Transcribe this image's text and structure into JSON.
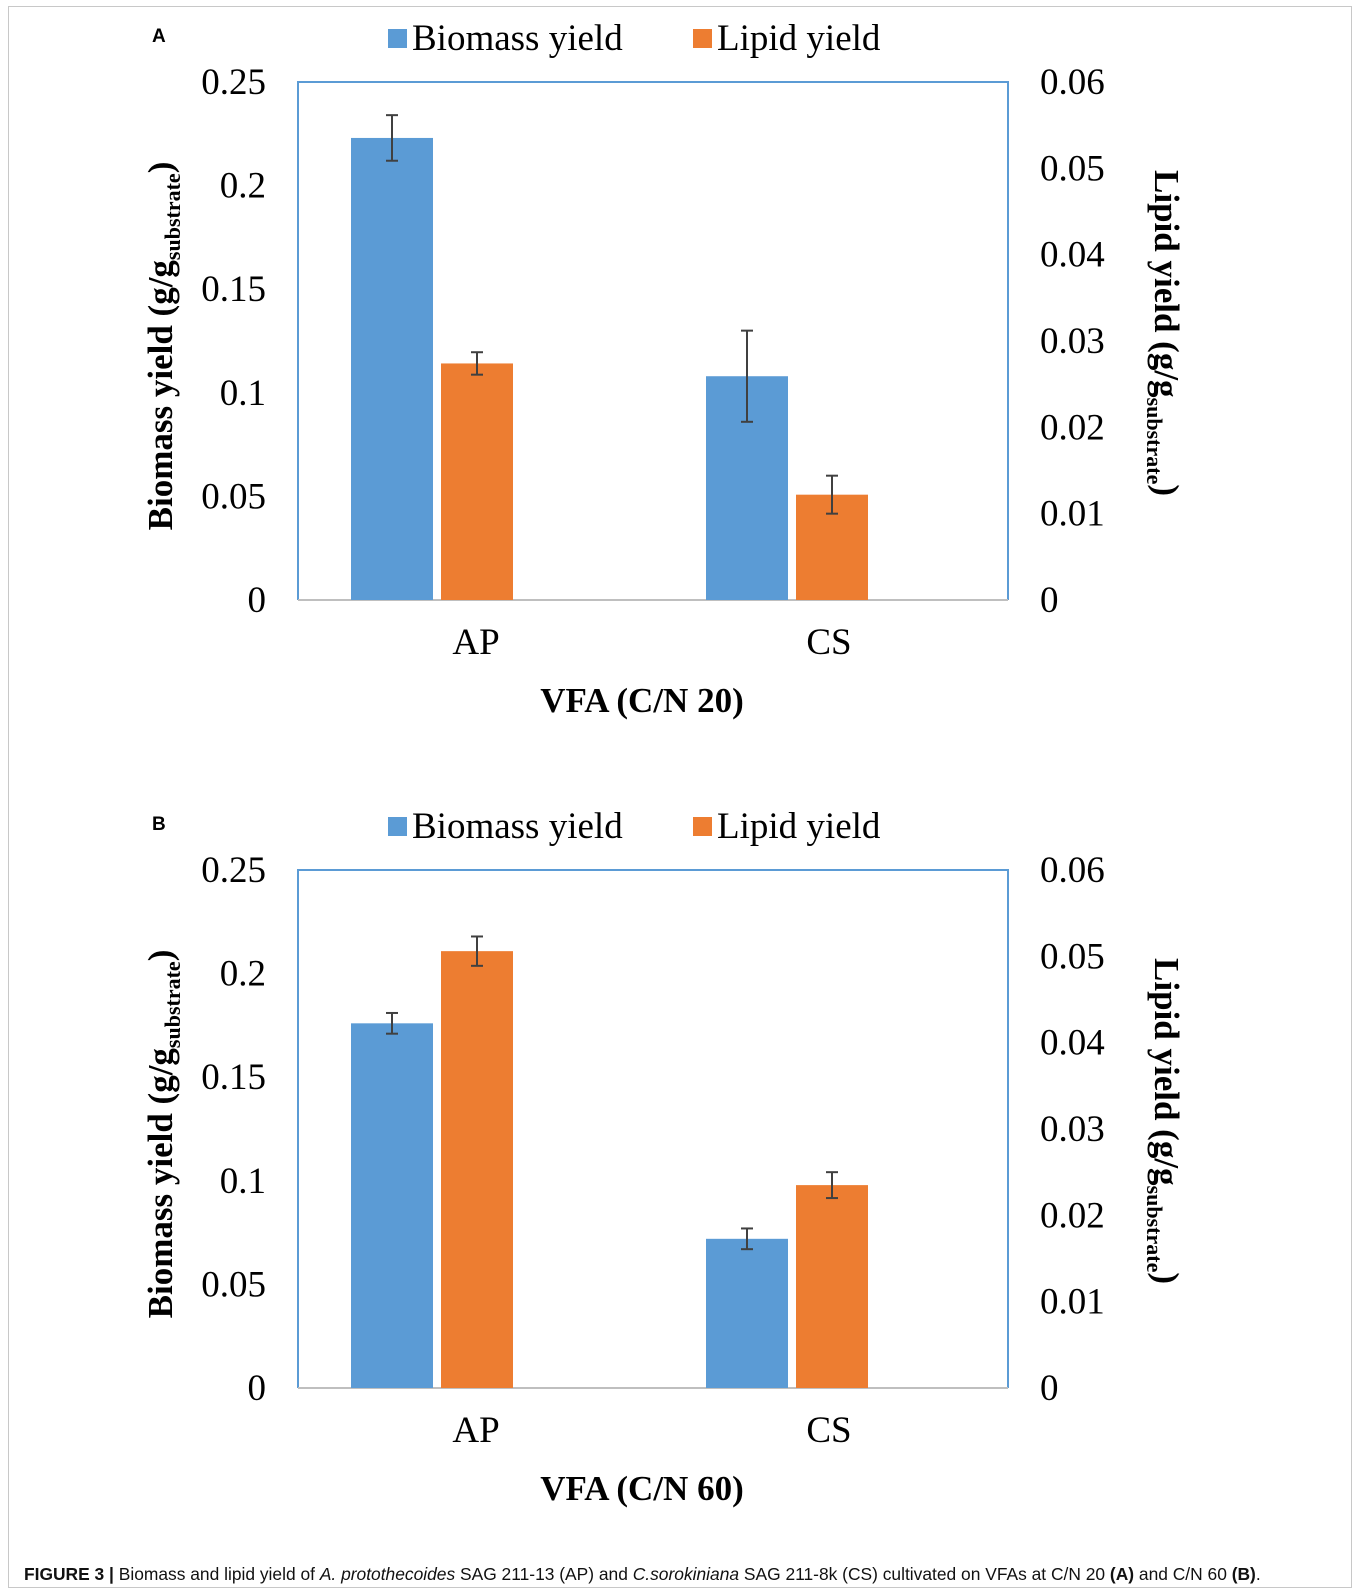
{
  "figure": {
    "caption": {
      "label": "FIGURE 3 |",
      "t1": " Biomass and lipid yield of ",
      "sp1": "A. protothecoides",
      "t2": " SAG 211-13 (AP) and ",
      "sp2": "C.sorokiniana",
      "t3": " SAG 211-8k (CS) cultivated on VFAs at C/N 20 ",
      "refA": "(A)",
      "t4": " and C/N 60 ",
      "refB": "(B)",
      "t5": "."
    }
  },
  "colors": {
    "biomass": "#5b9bd5",
    "lipid": "#ed7d31",
    "frame": "#5b9bd5"
  },
  "chart_data": [
    {
      "panel": "A",
      "type": "bar",
      "categories": [
        "AP",
        "CS"
      ],
      "xlabel": "VFA (C/N 20)",
      "ylabel_main": "Biomass yield (g/g",
      "ylabel_sub": "substrate",
      "ylabel_close": ")",
      "y2label_main": "Lipid yield (g/g",
      "y2label_sub": "substrate",
      "y2label_close": ")",
      "ylim": [
        0,
        0.25
      ],
      "yticks": [
        "0",
        "0.05",
        "0.1",
        "0.15",
        "0.2",
        "0.25"
      ],
      "y2lim": [
        0,
        0.06
      ],
      "y2ticks": [
        "0",
        "0.01",
        "0.02",
        "0.03",
        "0.04",
        "0.05",
        "0.06"
      ],
      "legend": "top",
      "series": [
        {
          "name": "Biomass yield",
          "axis": "left",
          "values": [
            0.223,
            0.108
          ],
          "errors": [
            0.011,
            0.022
          ]
        },
        {
          "name": "Lipid yield",
          "axis": "right",
          "values": [
            0.0274,
            0.0122
          ],
          "errors": [
            0.0013,
            0.0022
          ]
        }
      ]
    },
    {
      "panel": "B",
      "type": "bar",
      "categories": [
        "AP",
        "CS"
      ],
      "xlabel": "VFA (C/N 60)",
      "ylabel_main": "Biomass yield (g/g",
      "ylabel_sub": "substrate",
      "ylabel_close": ")",
      "y2label_main": "Lipid yield (g/g",
      "y2label_sub": "substrate",
      "y2label_close": ")",
      "ylim": [
        0,
        0.25
      ],
      "yticks": [
        "0",
        "0.05",
        "0.1",
        "0.15",
        "0.2",
        "0.25"
      ],
      "y2lim": [
        0,
        0.06
      ],
      "y2ticks": [
        "0",
        "0.01",
        "0.02",
        "0.03",
        "0.04",
        "0.05",
        "0.06"
      ],
      "legend": "top",
      "series": [
        {
          "name": "Biomass yield",
          "axis": "left",
          "values": [
            0.176,
            0.072
          ],
          "errors": [
            0.005,
            0.005
          ]
        },
        {
          "name": "Lipid yield",
          "axis": "right",
          "values": [
            0.0506,
            0.0235
          ],
          "errors": [
            0.0017,
            0.0015
          ]
        }
      ]
    }
  ]
}
